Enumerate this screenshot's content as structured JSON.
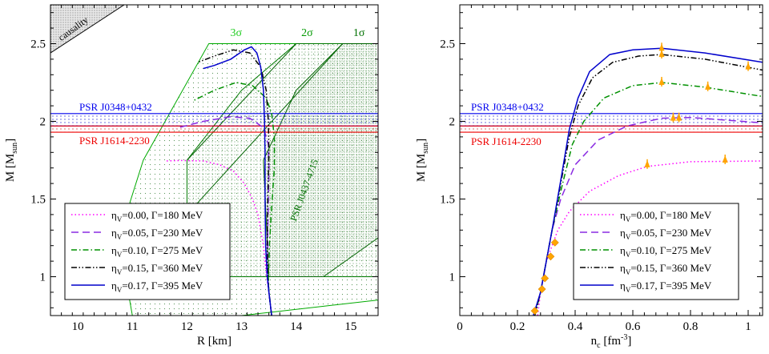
{
  "chart_data": [
    {
      "type": "line",
      "xlabel": "R [km]",
      "ylabel_main": "M [M",
      "ylabel_sub": "sun",
      "ylabel_end": "]",
      "xlim": [
        9.5,
        15.5
      ],
      "ylim": [
        0.75,
        2.75
      ],
      "x_ticks": [
        10,
        11,
        12,
        13,
        14,
        15
      ],
      "y_ticks": [
        1,
        1.5,
        2,
        2.5
      ],
      "causality_label": "causality",
      "sigma_labels": {
        "three": "3σ",
        "two": "2σ",
        "one": "1σ"
      },
      "pulsar_label": "PSR J0437-4715",
      "bands": [
        {
          "name": "PSR J0348+0432",
          "ylow": 1.97,
          "yhigh": 2.05,
          "color": "#0000ee"
        },
        {
          "name": "PSR J1614-2230",
          "ylow": 1.93,
          "yhigh": 1.97,
          "color": "#ee0000"
        }
      ],
      "series": [
        {
          "name": "η_V=0.00, Γ=180 MeV",
          "eta": "0.00",
          "gamma": "180",
          "color": "#ff00ff",
          "dash": "1.5,3",
          "points": [
            [
              13.55,
              0.75
            ],
            [
              13.5,
              0.9
            ],
            [
              13.46,
              1.0
            ],
            [
              13.43,
              1.1
            ],
            [
              13.4,
              1.2
            ],
            [
              13.35,
              1.3
            ],
            [
              13.3,
              1.4
            ],
            [
              13.2,
              1.5
            ],
            [
              13.05,
              1.6
            ],
            [
              12.85,
              1.68
            ],
            [
              12.6,
              1.72
            ],
            [
              12.3,
              1.745
            ],
            [
              11.9,
              1.748
            ],
            [
              11.6,
              1.745
            ]
          ]
        },
        {
          "name": "η_V=0.05, Γ=230 MeV",
          "eta": "0.05",
          "gamma": "230",
          "color": "#8a2be2",
          "dash": "9,5",
          "points": [
            [
              13.55,
              0.75
            ],
            [
              13.5,
              0.9
            ],
            [
              13.48,
              1.0
            ],
            [
              13.48,
              1.1
            ],
            [
              13.48,
              1.3
            ],
            [
              13.49,
              1.5
            ],
            [
              13.5,
              1.7
            ],
            [
              13.49,
              1.85
            ],
            [
              13.4,
              1.96
            ],
            [
              13.15,
              2.02
            ],
            [
              12.8,
              2.03
            ],
            [
              12.3,
              2.0
            ],
            [
              11.8,
              1.955
            ]
          ]
        },
        {
          "name": "η_V=0.10, Γ=275 MeV",
          "eta": "0.10",
          "gamma": "275",
          "color": "#009000",
          "dash": "7,3,1.5,3",
          "points": [
            [
              13.55,
              0.75
            ],
            [
              13.5,
              0.9
            ],
            [
              13.49,
              1.0
            ],
            [
              13.51,
              1.2
            ],
            [
              13.56,
              1.5
            ],
            [
              13.6,
              1.7
            ],
            [
              13.6,
              1.9
            ],
            [
              13.55,
              2.05
            ],
            [
              13.45,
              2.15
            ],
            [
              13.2,
              2.23
            ],
            [
              12.9,
              2.25
            ],
            [
              12.5,
              2.2
            ],
            [
              12.1,
              2.13
            ]
          ]
        },
        {
          "name": "η_V=0.15, Γ=360 MeV",
          "eta": "0.15",
          "gamma": "360",
          "color": "#000000",
          "dash": "7,2.5,1.5,2.5,1.5,2.5",
          "points": [
            [
              13.55,
              0.75
            ],
            [
              13.5,
              0.9
            ],
            [
              13.48,
              1.0
            ],
            [
              13.47,
              1.2
            ],
            [
              13.48,
              1.5
            ],
            [
              13.5,
              1.8
            ],
            [
              13.49,
              2.0
            ],
            [
              13.45,
              2.2
            ],
            [
              13.35,
              2.35
            ],
            [
              13.15,
              2.44
            ],
            [
              12.85,
              2.46
            ],
            [
              12.5,
              2.42
            ],
            [
              12.2,
              2.38
            ]
          ]
        },
        {
          "name": "η_V=0.17, Γ=395 MeV",
          "eta": "0.17",
          "gamma": "395",
          "color": "#0000cc",
          "dash": "",
          "points": [
            [
              13.55,
              0.75
            ],
            [
              13.5,
              0.9
            ],
            [
              13.47,
              1.0
            ],
            [
              13.44,
              1.2
            ],
            [
              13.43,
              1.5
            ],
            [
              13.43,
              1.8
            ],
            [
              13.42,
              2.0
            ],
            [
              13.4,
              2.2
            ],
            [
              13.35,
              2.35
            ],
            [
              13.28,
              2.44
            ],
            [
              13.18,
              2.48
            ],
            [
              13.05,
              2.46
            ],
            [
              12.8,
              2.4
            ],
            [
              12.5,
              2.36
            ],
            [
              12.3,
              2.34
            ]
          ]
        }
      ]
    },
    {
      "type": "line",
      "xlabel_main": "n",
      "xlabel_sub": "c",
      "xlabel_end": " [fm",
      "xlabel_sup": "-3",
      "xlabel_close": "]",
      "ylabel_main": "M [M",
      "ylabel_sub": "sun",
      "ylabel_end": "]",
      "xlim": [
        0,
        1.05
      ],
      "ylim": [
        0.75,
        2.75
      ],
      "x_ticks": [
        0,
        0.2,
        0.4,
        0.6,
        0.8,
        1
      ],
      "y_ticks": [
        1,
        1.5,
        2,
        2.5
      ],
      "bands": [
        {
          "name": "PSR J0348+0432",
          "ylow": 1.97,
          "yhigh": 2.05,
          "color": "#0000ee"
        },
        {
          "name": "PSR J1614-2230",
          "ylow": 1.93,
          "yhigh": 1.97,
          "color": "#ee0000"
        }
      ],
      "diamond_points": [
        [
          0.26,
          0.78
        ],
        [
          0.285,
          0.92
        ],
        [
          0.295,
          0.99
        ],
        [
          0.315,
          1.13
        ],
        [
          0.33,
          1.22
        ]
      ],
      "series": [
        {
          "name": "η_V=0.00, Γ=180 MeV",
          "eta": "0.00",
          "gamma": "180",
          "color": "#ff00ff",
          "dash": "1.5,3",
          "points": [
            [
              0.27,
              0.75
            ],
            [
              0.28,
              0.9
            ],
            [
              0.29,
              1.0
            ],
            [
              0.3,
              1.1
            ],
            [
              0.32,
              1.2
            ],
            [
              0.34,
              1.3
            ],
            [
              0.38,
              1.42
            ],
            [
              0.45,
              1.55
            ],
            [
              0.55,
              1.65
            ],
            [
              0.65,
              1.71
            ],
            [
              0.8,
              1.74
            ],
            [
              1.05,
              1.745
            ]
          ],
          "star_markers": [
            [
              0.65,
              1.72
            ],
            [
              0.92,
              1.75
            ]
          ]
        },
        {
          "name": "η_V=0.05, Γ=230 MeV",
          "eta": "0.05",
          "gamma": "230",
          "color": "#8a2be2",
          "dash": "9,5",
          "points": [
            [
              0.26,
              0.75
            ],
            [
              0.28,
              0.9
            ],
            [
              0.29,
              1.0
            ],
            [
              0.3,
              1.1
            ],
            [
              0.32,
              1.3
            ],
            [
              0.35,
              1.5
            ],
            [
              0.4,
              1.72
            ],
            [
              0.48,
              1.88
            ],
            [
              0.58,
              1.97
            ],
            [
              0.7,
              2.02
            ],
            [
              0.8,
              2.025
            ],
            [
              1.05,
              1.99
            ]
          ],
          "star_markers": [
            [
              0.74,
              2.02
            ],
            [
              0.76,
              2.02
            ]
          ]
        },
        {
          "name": "η_V=0.10, Γ=275 MeV",
          "eta": "0.10",
          "gamma": "275",
          "color": "#009000",
          "dash": "7,3,1.5,3",
          "points": [
            [
              0.26,
              0.75
            ],
            [
              0.28,
              0.9
            ],
            [
              0.29,
              1.0
            ],
            [
              0.3,
              1.1
            ],
            [
              0.32,
              1.3
            ],
            [
              0.35,
              1.55
            ],
            [
              0.39,
              1.85
            ],
            [
              0.43,
              2.0
            ],
            [
              0.5,
              2.15
            ],
            [
              0.6,
              2.23
            ],
            [
              0.7,
              2.25
            ],
            [
              0.85,
              2.22
            ],
            [
              1.05,
              2.16
            ]
          ],
          "star_markers": [
            [
              0.7,
              2.25
            ],
            [
              0.86,
              2.22
            ]
          ]
        },
        {
          "name": "η_V=0.15, Γ=360 MeV",
          "eta": "0.15",
          "gamma": "360",
          "color": "#000000",
          "dash": "7,2.5,1.5,2.5,1.5,2.5",
          "points": [
            [
              0.26,
              0.75
            ],
            [
              0.28,
              0.9
            ],
            [
              0.29,
              1.0
            ],
            [
              0.3,
              1.1
            ],
            [
              0.32,
              1.3
            ],
            [
              0.35,
              1.6
            ],
            [
              0.38,
              1.9
            ],
            [
              0.41,
              2.1
            ],
            [
              0.46,
              2.28
            ],
            [
              0.53,
              2.38
            ],
            [
              0.62,
              2.42
            ],
            [
              0.7,
              2.43
            ],
            [
              0.85,
              2.4
            ],
            [
              1.05,
              2.33
            ]
          ],
          "star_markers": [
            [
              0.7,
              2.43
            ],
            [
              1.0,
              2.35
            ]
          ]
        },
        {
          "name": "η_V=0.17, Γ=395 MeV",
          "eta": "0.17",
          "gamma": "395",
          "color": "#0000cc",
          "dash": "",
          "points": [
            [
              0.255,
              0.75
            ],
            [
              0.28,
              0.9
            ],
            [
              0.29,
              1.0
            ],
            [
              0.3,
              1.1
            ],
            [
              0.32,
              1.3
            ],
            [
              0.35,
              1.62
            ],
            [
              0.38,
              1.95
            ],
            [
              0.41,
              2.15
            ],
            [
              0.45,
              2.32
            ],
            [
              0.52,
              2.43
            ],
            [
              0.6,
              2.46
            ],
            [
              0.7,
              2.47
            ],
            [
              0.85,
              2.44
            ],
            [
              1.05,
              2.38
            ]
          ],
          "star_markers": [
            [
              0.7,
              2.47
            ]
          ]
        }
      ]
    }
  ]
}
